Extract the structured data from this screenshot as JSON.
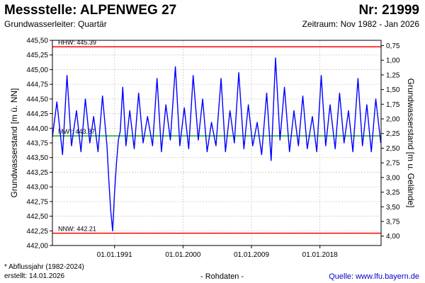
{
  "header": {
    "title": "Messstelle: ALPENWEG 27",
    "number": "Nr: 21999",
    "aquifer": "Grundwasserleiter: Quartär",
    "period": "Zeitraum: Nov 1982 - Jan 2026"
  },
  "footer": {
    "note": "* Abflussjahr (1982-2024)",
    "created": "erstellt:  14.01.2026",
    "data_type": "- Rohdaten -",
    "source": "Quelle: www.lfu.bayern.de"
  },
  "colors": {
    "series": "#0000ff",
    "reference_lines": "#ff0000",
    "mean_line": "#00a000",
    "grid": "#c8c8c8"
  },
  "chart_data": {
    "type": "line",
    "grid": true,
    "ylabel": "Grundwasserstand [m ü. NN]",
    "y2label": "Grundwasserstand [m u. Gelände]",
    "ylim": [
      442.0,
      445.5
    ],
    "y2lim": [
      4.16,
      0.66
    ],
    "xlim": [
      "1982-11-01",
      "2026-01-14"
    ],
    "yticks": [
      "445,50",
      "445,25",
      "445,00",
      "444,75",
      "444,50",
      "444,25",
      "444,00",
      "443,75",
      "443,50",
      "443,25",
      "443,00",
      "442,75",
      "442,50",
      "442,25",
      "442,00"
    ],
    "y2ticks": [
      "0,75",
      "1,00",
      "1,25",
      "1,50",
      "1,75",
      "2,00",
      "2,25",
      "2,50",
      "2,75",
      "3,00",
      "3,25",
      "3,50",
      "3,75",
      "4,00"
    ],
    "xticks": [
      "01.01.1991",
      "01.01.2000",
      "01.01.2009",
      "01.01.2018"
    ],
    "reference_lines": [
      {
        "label": "HHW: 445.39",
        "value": 445.39
      },
      {
        "label": "NNW: 442.21",
        "value": 442.21
      },
      {
        "label": "MW*: 443.87",
        "value": 443.87
      }
    ],
    "series": [
      {
        "x": [
          "1982-11",
          "1983-06",
          "1984-03",
          "1984-10",
          "1985-05",
          "1986-01",
          "1986-08",
          "1987-03",
          "1987-10",
          "1988-04",
          "1988-11",
          "1989-06",
          "1990-01",
          "1990-04",
          "1990-07",
          "1990-10",
          "1991-01",
          "1991-04",
          "1991-07",
          "1991-10",
          "1992-02",
          "1992-07",
          "1993-01",
          "1993-08",
          "1994-03",
          "1994-10",
          "1995-05",
          "1996-01",
          "1996-08",
          "1997-03",
          "1997-10",
          "1998-05",
          "1999-01",
          "1999-08",
          "2000-03",
          "2000-10",
          "2001-05",
          "2002-01",
          "2002-08",
          "2003-03",
          "2003-10",
          "2004-05",
          "2005-01",
          "2005-08",
          "2006-03",
          "2006-10",
          "2007-05",
          "2008-01",
          "2008-08",
          "2009-03",
          "2009-10",
          "2010-05",
          "2011-01",
          "2011-08",
          "2012-03",
          "2012-10",
          "2013-05",
          "2014-01",
          "2014-08",
          "2015-03",
          "2015-10",
          "2016-05",
          "2017-01",
          "2017-08",
          "2018-03",
          "2018-10",
          "2019-05",
          "2020-01",
          "2020-08",
          "2021-03",
          "2021-10",
          "2022-05",
          "2023-01",
          "2023-08",
          "2024-03",
          "2024-10",
          "2025-05",
          "2026-01"
        ],
        "y": [
          443.85,
          444.45,
          443.55,
          444.9,
          443.7,
          444.3,
          443.6,
          444.5,
          443.75,
          444.2,
          443.6,
          444.55,
          443.7,
          443.1,
          442.6,
          442.25,
          442.9,
          443.4,
          443.8,
          443.95,
          444.7,
          443.7,
          444.3,
          443.65,
          444.6,
          443.75,
          444.2,
          443.7,
          444.85,
          443.6,
          444.4,
          443.8,
          445.05,
          443.7,
          444.35,
          443.65,
          444.9,
          443.8,
          444.5,
          443.6,
          444.1,
          443.7,
          444.85,
          443.6,
          444.3,
          443.75,
          444.95,
          443.65,
          444.4,
          443.7,
          444.1,
          443.55,
          444.6,
          443.45,
          445.2,
          443.8,
          444.7,
          443.6,
          444.3,
          443.7,
          444.55,
          443.65,
          444.2,
          443.6,
          444.9,
          443.7,
          444.4,
          443.65,
          444.6,
          443.75,
          444.3,
          443.6,
          444.85,
          443.7,
          444.4,
          443.6,
          444.5,
          443.75
        ]
      }
    ]
  }
}
